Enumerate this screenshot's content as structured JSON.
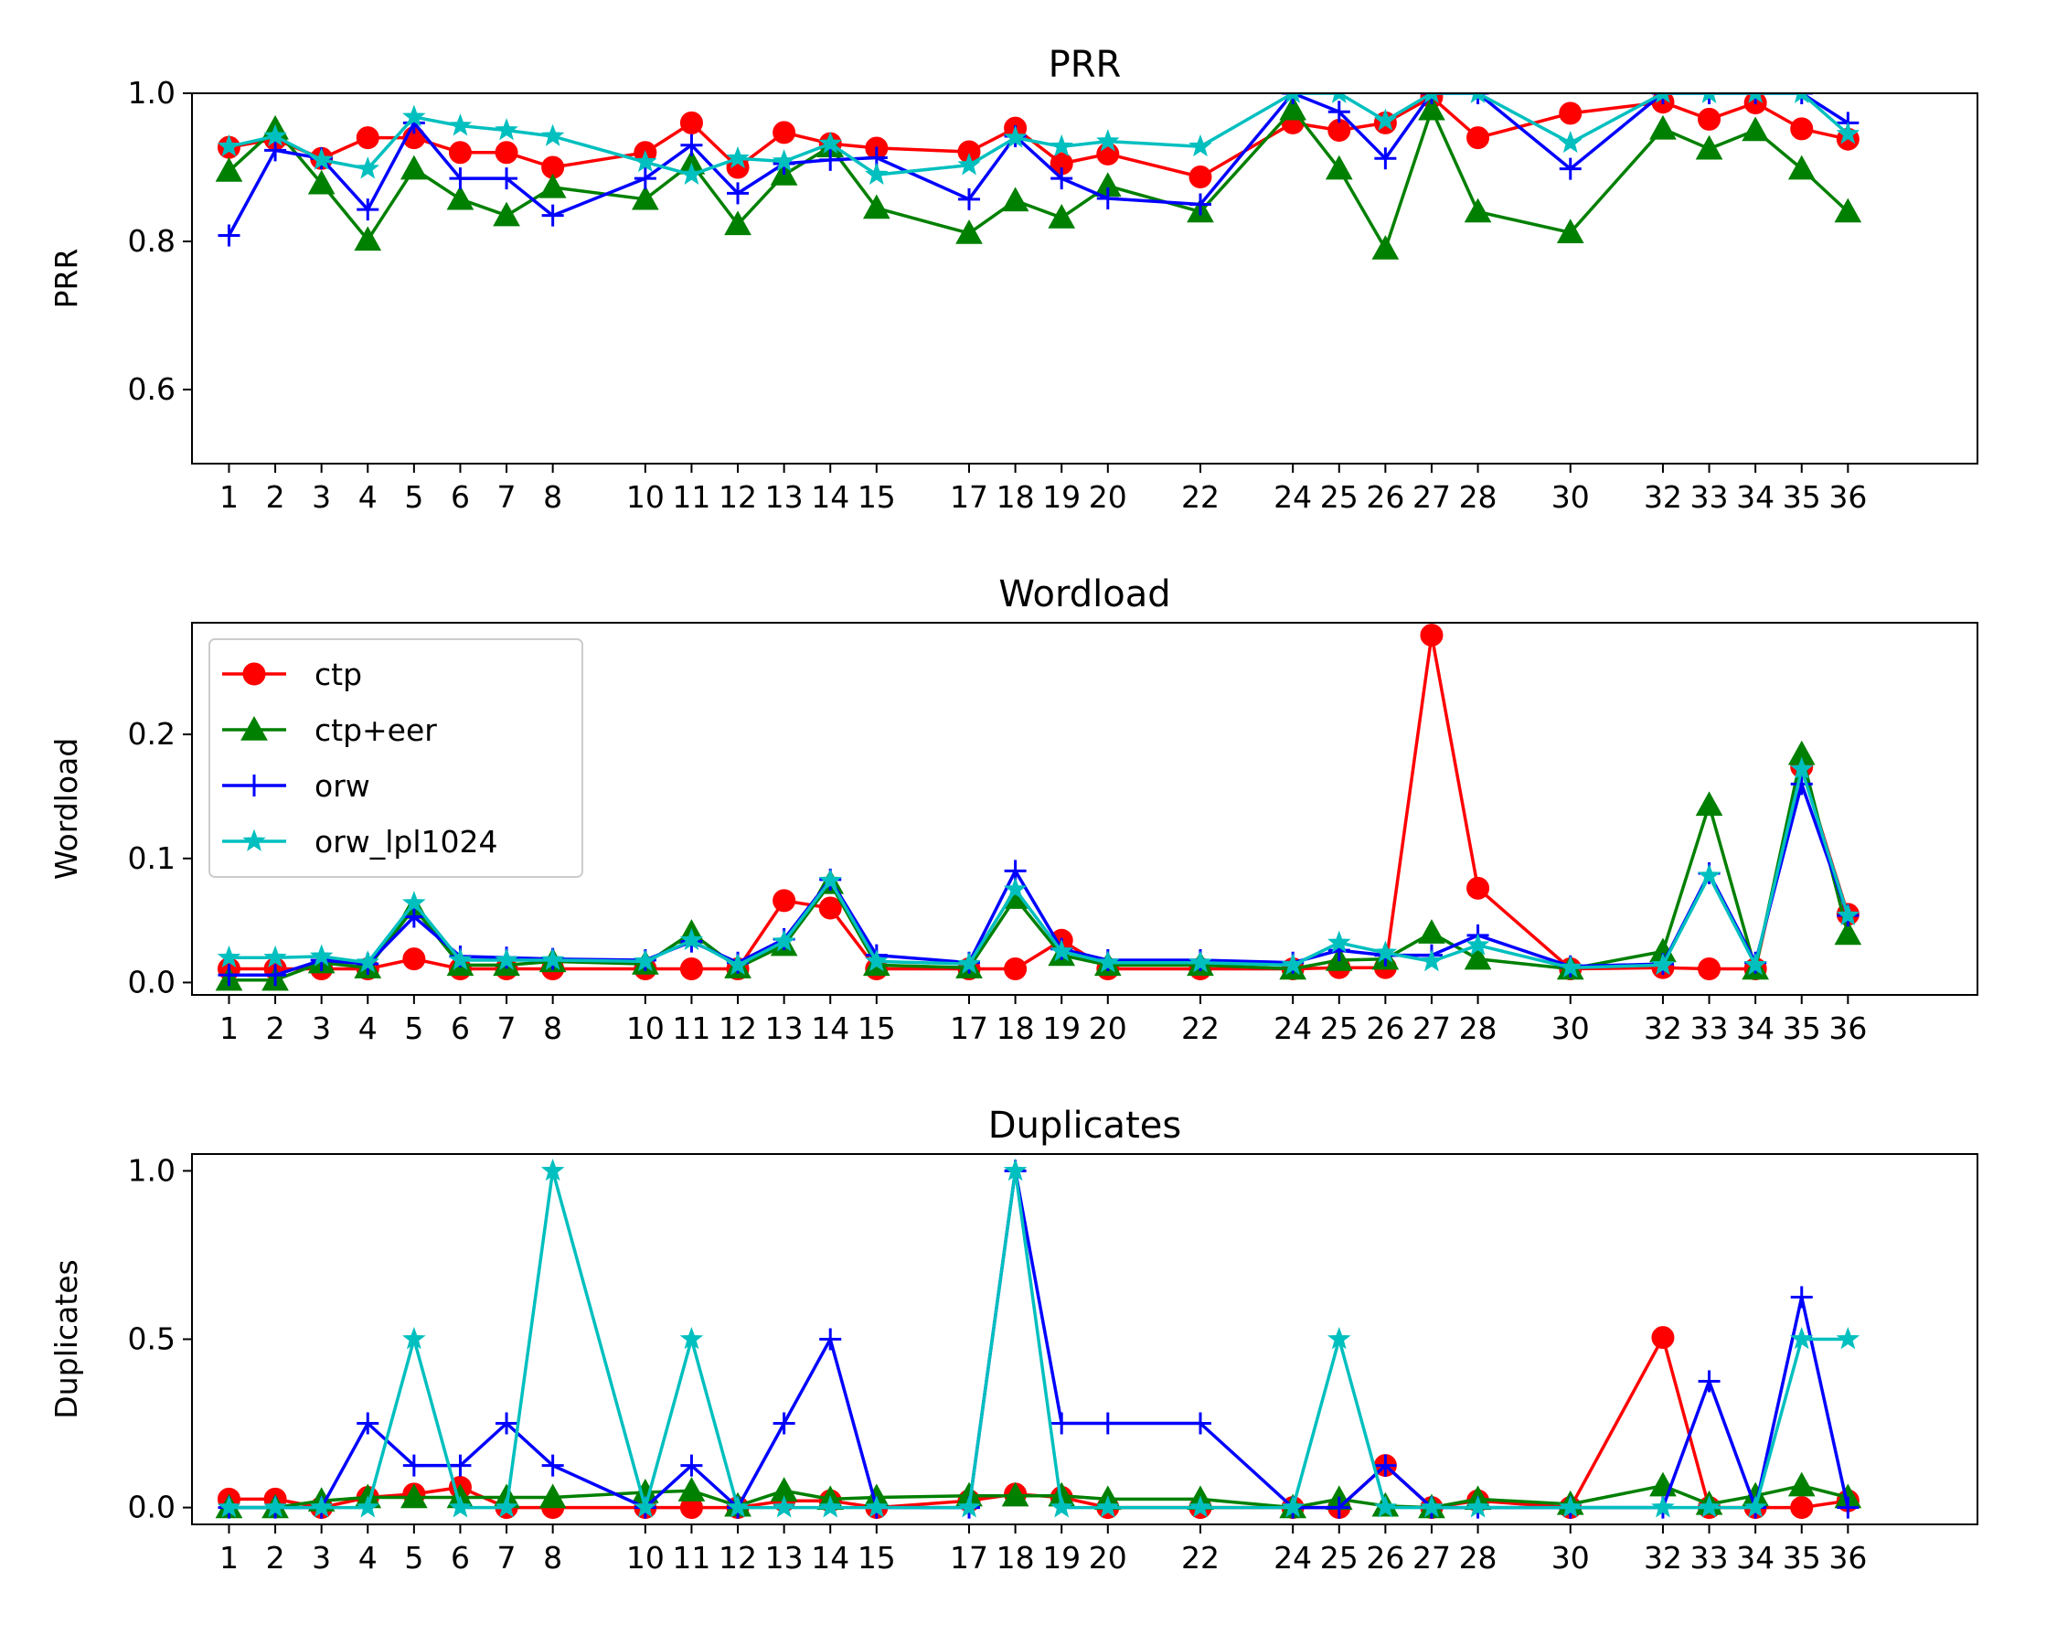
{
  "colors": {
    "ctp": "#ff0000",
    "ctp+eer": "#008000",
    "orw": "#0000ff",
    "orw_lpl1024": "#00bfbf"
  },
  "chart_data": [
    {
      "type": "line",
      "title": "PRR",
      "xlabel": "",
      "ylabel": "PRR",
      "ylim": [
        0.5,
        1.0
      ],
      "yticks": [
        0.6,
        0.8,
        1.0
      ],
      "ytick_labels": [
        "0.6",
        "0.8",
        "1.0"
      ],
      "x": [
        1,
        2,
        3,
        4,
        5,
        6,
        7,
        8,
        10,
        11,
        12,
        13,
        14,
        15,
        17,
        18,
        19,
        20,
        22,
        24,
        25,
        26,
        27,
        28,
        30,
        32,
        33,
        34,
        35,
        36
      ],
      "xtick_labels": [
        "1",
        "2",
        "3",
        "4",
        "5",
        "6",
        "7",
        "8",
        "10",
        "11",
        "12",
        "13",
        "14",
        "15",
        "17",
        "18",
        "19",
        "20",
        "22",
        "24",
        "25",
        "26",
        "27",
        "28",
        "30",
        "32",
        "33",
        "34",
        "35",
        "36"
      ],
      "grid": false,
      "legend": null,
      "series": [
        {
          "name": "ctp",
          "marker": "circle",
          "values": [
            0.927,
            0.938,
            0.912,
            0.94,
            0.94,
            0.92,
            0.92,
            0.9,
            0.92,
            0.96,
            0.9,
            0.947,
            0.932,
            0.926,
            0.921,
            0.953,
            0.905,
            0.918,
            0.887,
            0.96,
            0.95,
            0.96,
            0.995,
            0.94,
            0.973,
            0.988,
            0.965,
            0.987,
            0.952,
            0.938
          ]
        },
        {
          "name": "ctp+eer",
          "marker": "triangle",
          "values": [
            0.895,
            0.952,
            0.878,
            0.802,
            0.898,
            0.857,
            0.835,
            0.873,
            0.857,
            0.905,
            0.823,
            0.89,
            0.928,
            0.845,
            0.811,
            0.855,
            0.832,
            0.875,
            0.84,
            0.978,
            0.898,
            0.79,
            0.978,
            0.84,
            0.812,
            0.952,
            0.925,
            0.95,
            0.898,
            0.84
          ]
        },
        {
          "name": "orw",
          "marker": "plus",
          "values": [
            0.808,
            0.923,
            0.912,
            0.843,
            0.96,
            0.885,
            0.885,
            0.835,
            0.885,
            0.93,
            0.865,
            0.905,
            0.91,
            0.913,
            0.857,
            0.942,
            0.885,
            0.858,
            0.85,
            1.0,
            0.975,
            0.912,
            1.0,
            1.0,
            0.898,
            1.0,
            1.0,
            1.0,
            1.0,
            0.96
          ]
        },
        {
          "name": "orw_lpl1024",
          "marker": "star",
          "values": [
            0.928,
            0.942,
            0.91,
            0.898,
            0.968,
            0.956,
            0.95,
            0.942,
            0.907,
            0.89,
            0.912,
            0.908,
            0.932,
            0.89,
            0.903,
            0.94,
            0.928,
            0.935,
            0.928,
            1.0,
            1.0,
            0.963,
            1.0,
            1.0,
            0.933,
            1.0,
            1.0,
            1.0,
            1.0,
            0.945
          ]
        }
      ]
    },
    {
      "type": "line",
      "title": "Wordload",
      "xlabel": "",
      "ylabel": "Wordload",
      "ylim": [
        -0.01,
        0.29
      ],
      "yticks": [
        0.0,
        0.1,
        0.2
      ],
      "ytick_labels": [
        "0.0",
        "0.1",
        "0.2"
      ],
      "x": [
        1,
        2,
        3,
        4,
        5,
        6,
        7,
        8,
        10,
        11,
        12,
        13,
        14,
        15,
        17,
        18,
        19,
        20,
        22,
        24,
        25,
        26,
        27,
        28,
        30,
        32,
        33,
        34,
        35,
        36
      ],
      "xtick_labels": [
        "1",
        "2",
        "3",
        "4",
        "5",
        "6",
        "7",
        "8",
        "10",
        "11",
        "12",
        "13",
        "14",
        "15",
        "17",
        "18",
        "19",
        "20",
        "22",
        "24",
        "25",
        "26",
        "27",
        "28",
        "30",
        "32",
        "33",
        "34",
        "35",
        "36"
      ],
      "grid": false,
      "legend": "upper-left",
      "series": [
        {
          "name": "ctp",
          "marker": "circle",
          "values": [
            0.011,
            0.011,
            0.011,
            0.011,
            0.019,
            0.011,
            0.011,
            0.011,
            0.011,
            0.011,
            0.011,
            0.066,
            0.06,
            0.011,
            0.011,
            0.011,
            0.034,
            0.011,
            0.011,
            0.011,
            0.012,
            0.012,
            0.28,
            0.076,
            0.011,
            0.012,
            0.011,
            0.011,
            0.174,
            0.055
          ]
        },
        {
          "name": "ctp+eer",
          "marker": "triangle",
          "values": [
            0.002,
            0.002,
            0.016,
            0.012,
            0.06,
            0.014,
            0.014,
            0.017,
            0.015,
            0.04,
            0.012,
            0.03,
            0.08,
            0.014,
            0.012,
            0.068,
            0.022,
            0.014,
            0.014,
            0.011,
            0.018,
            0.019,
            0.04,
            0.019,
            0.011,
            0.025,
            0.143,
            0.011,
            0.184,
            0.039
          ]
        },
        {
          "name": "orw",
          "marker": "plus",
          "values": [
            0.006,
            0.006,
            0.018,
            0.015,
            0.053,
            0.021,
            0.02,
            0.019,
            0.018,
            0.033,
            0.016,
            0.035,
            0.083,
            0.022,
            0.016,
            0.09,
            0.027,
            0.018,
            0.018,
            0.016,
            0.026,
            0.022,
            0.022,
            0.038,
            0.013,
            0.015,
            0.088,
            0.016,
            0.16,
            0.054
          ]
        },
        {
          "name": "orw_lpl1024",
          "marker": "star",
          "values": [
            0.02,
            0.02,
            0.021,
            0.016,
            0.064,
            0.018,
            0.018,
            0.018,
            0.017,
            0.034,
            0.014,
            0.033,
            0.082,
            0.017,
            0.015,
            0.075,
            0.025,
            0.016,
            0.016,
            0.014,
            0.032,
            0.024,
            0.017,
            0.03,
            0.012,
            0.014,
            0.086,
            0.014,
            0.172,
            0.054
          ]
        }
      ]
    },
    {
      "type": "line",
      "title": "Duplicates",
      "xlabel": "",
      "ylabel": "Duplicates",
      "ylim": [
        -0.05,
        1.05
      ],
      "yticks": [
        0.0,
        0.5,
        1.0
      ],
      "ytick_labels": [
        "0.0",
        "0.5",
        "1.0"
      ],
      "x": [
        1,
        2,
        3,
        4,
        5,
        6,
        7,
        8,
        10,
        11,
        12,
        13,
        14,
        15,
        17,
        18,
        19,
        20,
        22,
        24,
        25,
        26,
        27,
        28,
        30,
        32,
        33,
        34,
        35,
        36
      ],
      "xtick_labels": [
        "1",
        "2",
        "3",
        "4",
        "5",
        "6",
        "7",
        "8",
        "10",
        "11",
        "12",
        "13",
        "14",
        "15",
        "17",
        "18",
        "19",
        "20",
        "22",
        "24",
        "25",
        "26",
        "27",
        "28",
        "30",
        "32",
        "33",
        "34",
        "35",
        "36"
      ],
      "grid": false,
      "legend": null,
      "series": [
        {
          "name": "ctp",
          "marker": "circle",
          "values": [
            0.025,
            0.025,
            0.0,
            0.03,
            0.04,
            0.06,
            0.0,
            0.0,
            0.0,
            0.0,
            0.0,
            0.02,
            0.02,
            0.0,
            0.02,
            0.04,
            0.03,
            0.0,
            0.0,
            0.0,
            0.0,
            0.125,
            0.0,
            0.02,
            0.0,
            0.505,
            0.0,
            0.0,
            0.0,
            0.02
          ]
        },
        {
          "name": "ctp+eer",
          "marker": "triangle",
          "values": [
            0.0,
            0.0,
            0.02,
            0.03,
            0.03,
            0.03,
            0.03,
            0.03,
            0.045,
            0.05,
            0.005,
            0.05,
            0.025,
            0.03,
            0.035,
            0.035,
            0.035,
            0.025,
            0.025,
            0.0,
            0.025,
            0.005,
            0.0,
            0.025,
            0.01,
            0.065,
            0.01,
            0.035,
            0.065,
            0.03
          ]
        },
        {
          "name": "orw",
          "marker": "plus",
          "values": [
            0.0,
            0.0,
            0.0,
            0.25,
            0.125,
            0.125,
            0.25,
            0.125,
            0.0,
            0.125,
            0.0,
            0.25,
            0.5,
            0.0,
            0.0,
            1.0,
            0.25,
            0.25,
            0.25,
            0.0,
            0.0,
            0.125,
            0.0,
            0.0,
            0.0,
            0.0,
            0.375,
            0.0,
            0.625,
            0.0
          ]
        },
        {
          "name": "orw_lpl1024",
          "marker": "star",
          "values": [
            0.0,
            0.0,
            0.0,
            0.0,
            0.5,
            0.0,
            0.0,
            1.0,
            0.0,
            0.5,
            0.0,
            0.0,
            0.0,
            0.0,
            0.0,
            1.0,
            0.0,
            0.0,
            0.0,
            0.0,
            0.5,
            0.0,
            0.0,
            0.0,
            0.0,
            0.0,
            0.0,
            0.0,
            0.5,
            0.5
          ]
        }
      ]
    }
  ]
}
